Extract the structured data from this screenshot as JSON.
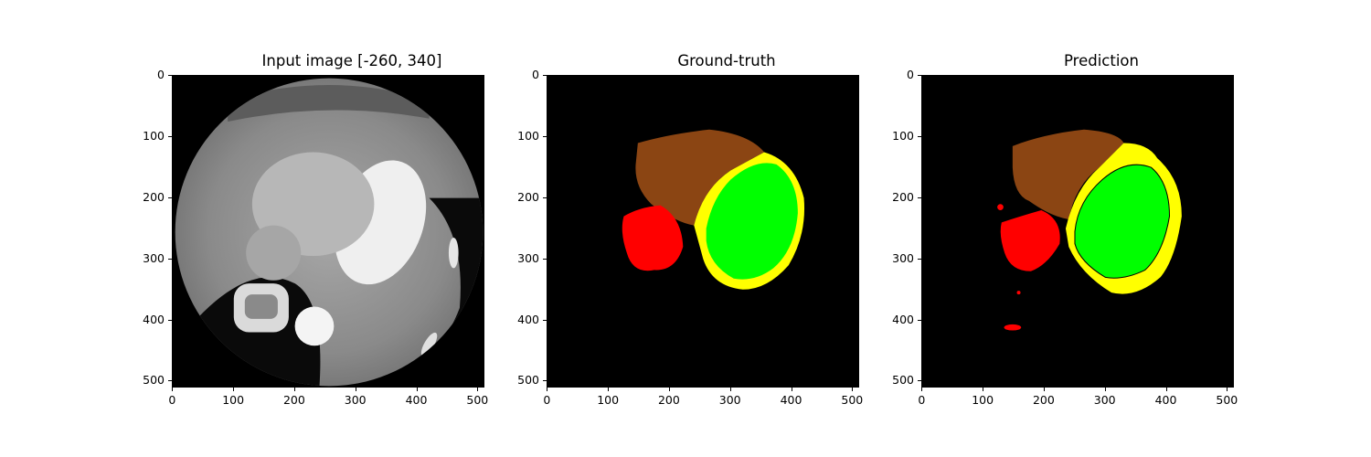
{
  "figure": {
    "panels": [
      {
        "title": "Input image [-260, 340]"
      },
      {
        "title": "Ground-truth"
      },
      {
        "title": "Prediction"
      }
    ],
    "y_ticks": [
      "0",
      "100",
      "200",
      "300",
      "400",
      "500"
    ],
    "x_ticks": [
      "0",
      "100",
      "200",
      "300",
      "400",
      "500"
    ],
    "image_size": 512
  },
  "colors": {
    "myocardium": "#ffff00",
    "left_ventricle": "#00ff00",
    "right_atrium": "#ff0000",
    "left_atrium": "#8b4513",
    "background": "#000000"
  }
}
